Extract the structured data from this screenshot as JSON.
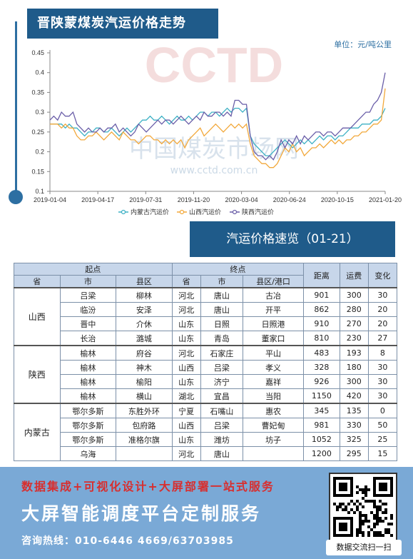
{
  "header": {
    "title": "晋陕蒙煤炭汽运价格走势",
    "unit": "单位：元/吨公里"
  },
  "watermarks": {
    "chart_logo": "CCTD",
    "chart_cn": "中国煤炭市场网",
    "chart_url": "www.cctd.com.cn"
  },
  "colors": {
    "inner_mongolia": "#3cb0c4",
    "shanxi": "#f2a83a",
    "shaanxi": "#6a5ea8",
    "banner": "#1f5b8a"
  },
  "chart_data": {
    "type": "line",
    "x_ticks": [
      "2019-01-04",
      "2019-04-17",
      "2019-07-31",
      "2019-11-20",
      "2020-03-04",
      "2020-06-24",
      "2020-10-15",
      "2021-01-20"
    ],
    "y_ticks": [
      "0.1",
      "0.15",
      "0.2",
      "0.25",
      "0.3",
      "0.35",
      "0.4",
      "0.45"
    ],
    "ylim": [
      0.1,
      0.45
    ],
    "series": [
      {
        "name": "内蒙古汽运价",
        "color": "#3cb0c4",
        "values": [
          0.27,
          0.27,
          0.27,
          0.27,
          0.26,
          0.27,
          0.26,
          0.26,
          0.25,
          0.24,
          0.25,
          0.25,
          0.26,
          0.26,
          0.25,
          0.25,
          0.26,
          0.25,
          0.24,
          0.25,
          0.26,
          0.25,
          0.26,
          0.27,
          0.28,
          0.28,
          0.29,
          0.28,
          0.28,
          0.29,
          0.28,
          0.27,
          0.28,
          0.29,
          0.28,
          0.28,
          0.29,
          0.28,
          0.29,
          0.3,
          0.3,
          0.29,
          0.3,
          0.3,
          0.29,
          0.3,
          0.31,
          0.3,
          0.31,
          0.31,
          0.3,
          0.31,
          0.24,
          0.22,
          0.21,
          0.2,
          0.19,
          0.19,
          0.2,
          0.21,
          0.22,
          0.23,
          0.22,
          0.21,
          0.22,
          0.23,
          0.22,
          0.23,
          0.22,
          0.23,
          0.24,
          0.23,
          0.24,
          0.24,
          0.23,
          0.24,
          0.24,
          0.25,
          0.26,
          0.26,
          0.26,
          0.27,
          0.27,
          0.27,
          0.28,
          0.28,
          0.29,
          0.31
        ]
      },
      {
        "name": "山西汽运价",
        "color": "#f2a83a",
        "values": [
          0.27,
          0.27,
          0.27,
          0.26,
          0.27,
          0.26,
          0.26,
          0.24,
          0.23,
          0.23,
          0.24,
          0.24,
          0.25,
          0.24,
          0.23,
          0.24,
          0.25,
          0.24,
          0.23,
          0.25,
          0.24,
          0.23,
          0.23,
          0.22,
          0.23,
          0.24,
          0.24,
          0.23,
          0.23,
          0.22,
          0.23,
          0.22,
          0.23,
          0.22,
          0.23,
          0.21,
          0.23,
          0.24,
          0.25,
          0.26,
          0.24,
          0.25,
          0.26,
          0.27,
          0.26,
          0.25,
          0.26,
          0.27,
          0.26,
          0.27,
          0.26,
          0.27,
          0.22,
          0.19,
          0.18,
          0.17,
          0.17,
          0.16,
          0.16,
          0.17,
          0.19,
          0.21,
          0.2,
          0.22,
          0.2,
          0.21,
          0.19,
          0.2,
          0.21,
          0.21,
          0.22,
          0.21,
          0.22,
          0.23,
          0.22,
          0.23,
          0.22,
          0.23,
          0.23,
          0.24,
          0.24,
          0.25,
          0.25,
          0.26,
          0.27,
          0.27,
          0.28,
          0.36
        ]
      },
      {
        "name": "陕西汽运价",
        "color": "#6a5ea8",
        "values": [
          0.28,
          0.29,
          0.28,
          0.3,
          0.29,
          0.29,
          0.3,
          0.27,
          0.26,
          0.25,
          0.26,
          0.25,
          0.25,
          0.26,
          0.25,
          0.26,
          0.26,
          0.27,
          0.25,
          0.26,
          0.25,
          0.24,
          0.25,
          0.27,
          0.26,
          0.25,
          0.26,
          0.27,
          0.28,
          0.27,
          0.28,
          0.28,
          0.27,
          0.28,
          0.29,
          0.28,
          0.27,
          0.28,
          0.29,
          0.28,
          0.3,
          0.29,
          0.29,
          0.3,
          0.3,
          0.29,
          0.3,
          0.29,
          0.33,
          0.33,
          0.32,
          0.32,
          0.24,
          0.2,
          0.19,
          0.19,
          0.18,
          0.19,
          0.18,
          0.2,
          0.23,
          0.21,
          0.23,
          0.22,
          0.24,
          0.22,
          0.24,
          0.23,
          0.24,
          0.25,
          0.25,
          0.24,
          0.25,
          0.25,
          0.24,
          0.25,
          0.26,
          0.26,
          0.26,
          0.27,
          0.28,
          0.29,
          0.3,
          0.3,
          0.32,
          0.33,
          0.35,
          0.4
        ]
      }
    ]
  },
  "overview": {
    "title": "汽运价格速览（01-21）",
    "group_headers": {
      "origin": "起点",
      "destination": "终点"
    },
    "col_headers": {
      "o_prov": "省",
      "o_city": "市",
      "o_county": "县区",
      "d_prov": "省",
      "d_city": "市",
      "d_port": "县区/港口",
      "distance": "距离",
      "fee": "运费",
      "change": "变化"
    },
    "groups": [
      {
        "province": "山西",
        "rows": [
          [
            "吕梁",
            "柳林",
            "河北",
            "唐山",
            "古冶",
            "901",
            "300",
            "30"
          ],
          [
            "临汾",
            "安泽",
            "河北",
            "唐山",
            "开平",
            "862",
            "280",
            "20"
          ],
          [
            "晋中",
            "介休",
            "山东",
            "日照",
            "日照港",
            "910",
            "270",
            "20"
          ],
          [
            "长治",
            "潞城",
            "山东",
            "青岛",
            "董家口",
            "810",
            "230",
            "27"
          ]
        ]
      },
      {
        "province": "陕西",
        "rows": [
          [
            "榆林",
            "府谷",
            "河北",
            "石家庄",
            "平山",
            "483",
            "193",
            "8"
          ],
          [
            "榆林",
            "神木",
            "山西",
            "吕梁",
            "孝义",
            "328",
            "180",
            "30"
          ],
          [
            "榆林",
            "榆阳",
            "山东",
            "济宁",
            "嘉祥",
            "926",
            "300",
            "30"
          ],
          [
            "榆林",
            "横山",
            "湖北",
            "宜昌",
            "当阳",
            "1150",
            "420",
            "30"
          ]
        ]
      },
      {
        "province": "内蒙古",
        "rows": [
          [
            "鄂尔多斯",
            "东胜外环",
            "宁夏",
            "石嘴山",
            "惠农",
            "345",
            "135",
            "0"
          ],
          [
            "鄂尔多斯",
            "包府路",
            "山西",
            "吕梁",
            "曹妃甸",
            "981",
            "330",
            "50"
          ],
          [
            "鄂尔多斯",
            "准格尔旗",
            "山东",
            "潍坊",
            "坊子",
            "1052",
            "325",
            "25"
          ],
          [
            "乌海",
            "",
            "河北",
            "唐山",
            "",
            "1200",
            "295",
            "15"
          ]
        ]
      }
    ]
  },
  "promo": {
    "line1": "数据集成+可视化设计+大屏部署一站式服务",
    "line2": "大屏智能调度平台定制服务",
    "line3": "咨询热线：010-6446 4669/63703985",
    "qr_label": "数据交流扫一扫"
  }
}
